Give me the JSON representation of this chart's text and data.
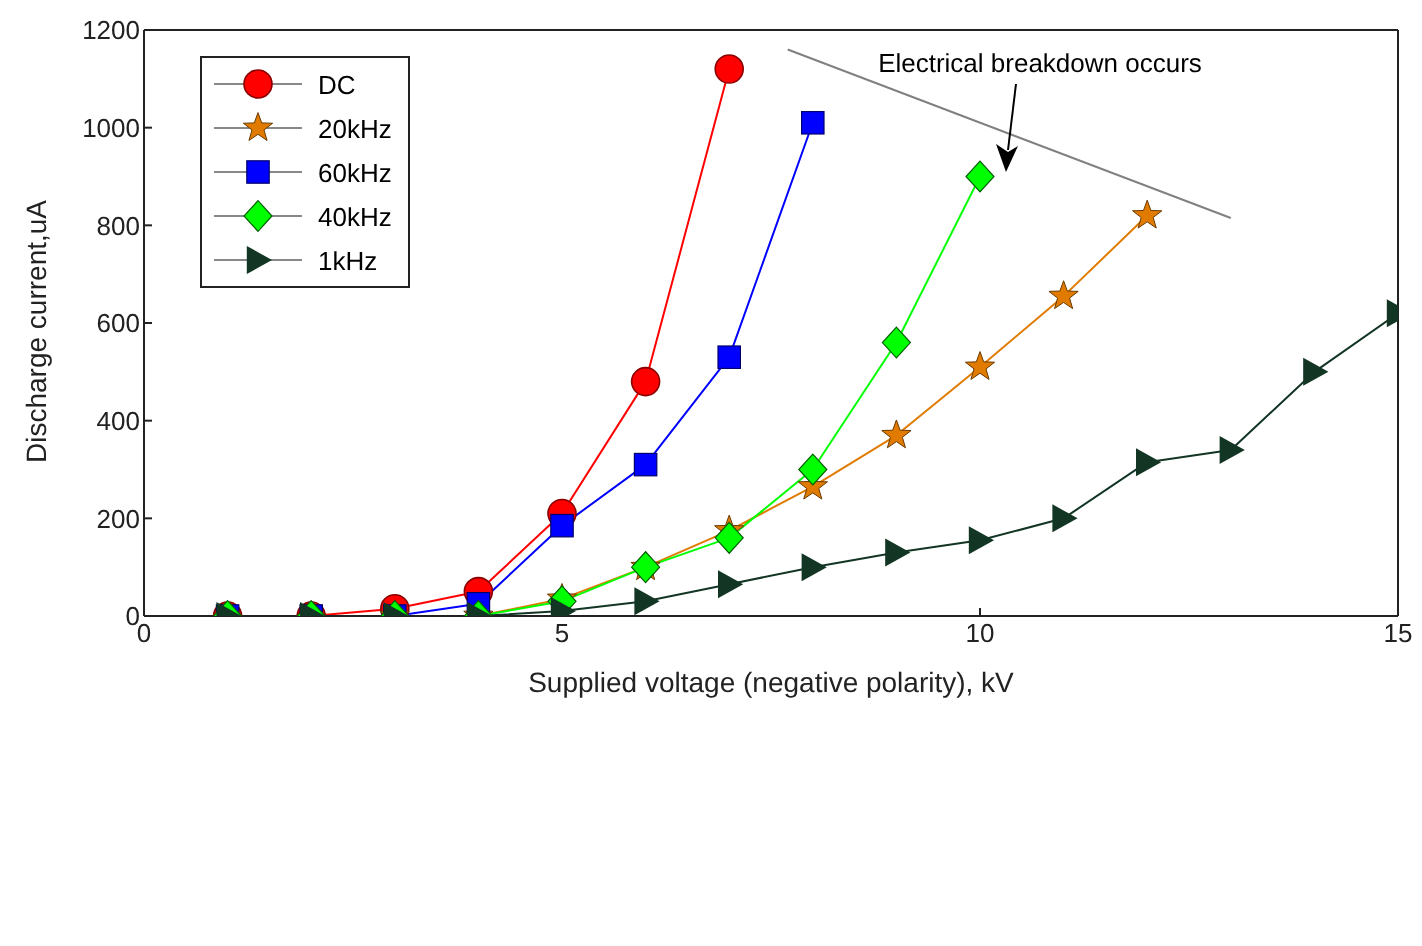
{
  "chart_data": {
    "type": "line",
    "xlabel": "Supplied voltage (negative polarity), kV",
    "ylabel": "Discharge current,uA",
    "xlim": [
      0,
      15
    ],
    "xticks": [
      0,
      5,
      10,
      15
    ],
    "ylim": [
      0,
      1200
    ],
    "yticks": [
      0,
      200,
      400,
      600,
      800,
      1000,
      1200
    ],
    "grid": false,
    "legend": "top left",
    "line_style": "solid",
    "series": [
      {
        "name": "DC",
        "color": "#ff0000",
        "marker": "circle",
        "x": [
          1,
          2,
          3,
          4,
          5,
          6,
          7
        ],
        "values": [
          0,
          0,
          15,
          50,
          210,
          480,
          1120
        ]
      },
      {
        "name": "20kHz",
        "color": "#e07b00",
        "marker": "star",
        "x": [
          3,
          4,
          5,
          6,
          7,
          8,
          9,
          10,
          11,
          12
        ],
        "values": [
          0,
          0,
          35,
          100,
          175,
          265,
          370,
          510,
          655,
          820
        ]
      },
      {
        "name": "60kHz",
        "color": "#0000ff",
        "marker": "square",
        "x": [
          1,
          2,
          3,
          4,
          5,
          6,
          7,
          8
        ],
        "values": [
          0,
          0,
          0,
          25,
          185,
          310,
          530,
          1010
        ]
      },
      {
        "name": "40kHz",
        "color": "#00ff00",
        "marker": "diamond",
        "x": [
          1,
          2,
          3,
          4,
          5,
          6,
          7,
          8,
          9,
          10
        ],
        "values": [
          0,
          0,
          0,
          0,
          30,
          100,
          160,
          300,
          560,
          900
        ]
      },
      {
        "name": "1kHz",
        "color": "#123524",
        "marker": "triangle",
        "x": [
          1,
          2,
          3,
          4,
          5,
          6,
          7,
          8,
          9,
          10,
          11,
          12,
          13,
          14,
          15
        ],
        "values": [
          0,
          0,
          0,
          0,
          10,
          30,
          65,
          100,
          130,
          155,
          200,
          315,
          340,
          500,
          620
        ]
      },
      {
        "color": "#808080",
        "marker": "none",
        "x": [
          7.7,
          13
        ],
        "values": [
          1160,
          815
        ]
      }
    ],
    "annotations": [
      "Electrical breakdown occurs"
    ]
  }
}
